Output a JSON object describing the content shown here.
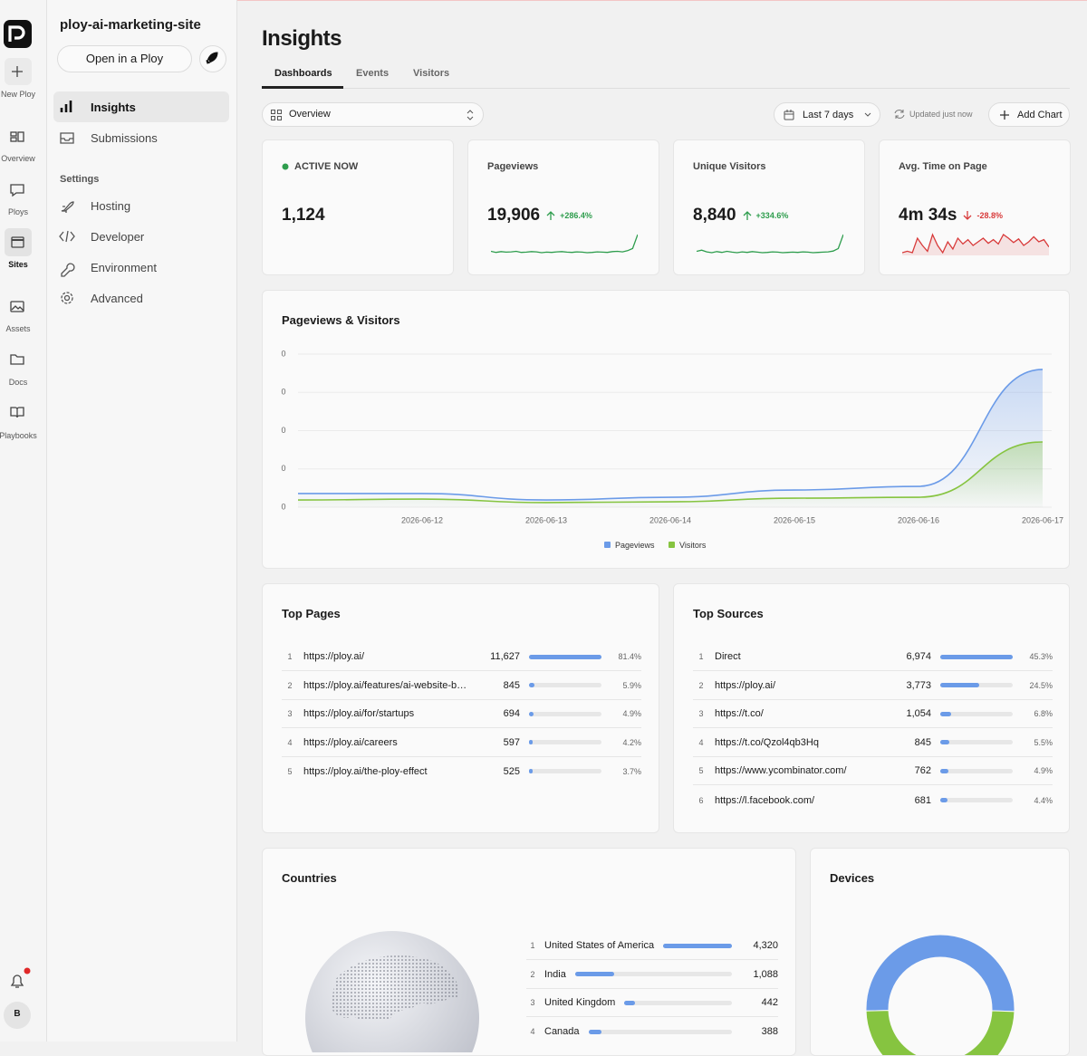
{
  "rail": {
    "items": [
      "New Ploy",
      "Overview",
      "Ploys",
      "Sites",
      "Assets",
      "Docs",
      "Playbooks"
    ],
    "avatar": "B"
  },
  "sidebar": {
    "site": "ploy-ai-marketing-site",
    "open_button": "Open in a Ploy",
    "nav": [
      "Insights",
      "Submissions"
    ],
    "settings_title": "Settings",
    "settings": [
      "Hosting",
      "Developer",
      "Environment",
      "Advanced"
    ]
  },
  "header": {
    "title": "Insights",
    "tabs": [
      "Dashboards",
      "Events",
      "Visitors"
    ]
  },
  "toolbar": {
    "view": "Overview",
    "range": "Last 7 days",
    "status": "Updated just now",
    "add": "Add Chart"
  },
  "stats": [
    {
      "label": "ACTIVE NOW",
      "value": "1,124",
      "dot_color": "#2e9d4d"
    },
    {
      "label": "Pageviews",
      "value": "19,906",
      "change": "+286.4%",
      "arrow": "up",
      "color": "#2e9d4d",
      "trend": [
        3,
        2.6,
        2.9,
        2.7,
        2.8,
        3,
        2.6,
        2.7,
        2.9,
        2.8,
        2.5,
        2.7,
        2.6,
        2.8,
        2.9,
        2.7,
        2.6,
        2.8,
        2.7,
        2.5,
        2.6,
        2.8,
        2.7,
        2.6,
        2.9,
        3,
        2.8,
        3.2,
        4,
        9
      ]
    },
    {
      "label": "Unique Visitors",
      "value": "8,840",
      "change": "+334.6%",
      "arrow": "up",
      "color": "#2e9d4d",
      "trend": [
        3,
        3.4,
        2.8,
        2.5,
        2.9,
        2.6,
        3,
        2.7,
        2.5,
        2.8,
        2.6,
        2.9,
        2.7,
        2.5,
        2.6,
        2.8,
        2.7,
        2.5,
        2.6,
        2.7,
        2.6,
        2.8,
        2.7,
        2.5,
        2.6,
        2.7,
        2.8,
        3.1,
        4,
        9
      ]
    },
    {
      "label": "Avg. Time on Page",
      "value": "4m 34s",
      "change": "-28.8%",
      "arrow": "down",
      "color": "#d83a3a",
      "trend": [
        5,
        5.2,
        5,
        7,
        6,
        5.2,
        7.5,
        6,
        5,
        6.5,
        5.5,
        7,
        6.2,
        6.8,
        6,
        6.5,
        7,
        6.3,
        6.8,
        6.2,
        7.5,
        7,
        6.4,
        6.9,
        6,
        6.5,
        7.2,
        6.5,
        6.8,
        5.8
      ]
    }
  ],
  "chart_data": [
    {
      "type": "line",
      "title": "Pageviews & Visitors",
      "categories": [
        null,
        "2026-06-12",
        "2026-06-13",
        "2026-06-14",
        "2026-06-15",
        "2026-06-16",
        "2026-06-17"
      ],
      "series": [
        {
          "name": "Pageviews",
          "color": "#6b9be8",
          "values": [
            890,
            890,
            470,
            650,
            1120,
            1360,
            9000
          ]
        },
        {
          "name": "Visitors",
          "color": "#86c440",
          "values": [
            470,
            530,
            300,
            350,
            590,
            650,
            4260
          ]
        }
      ],
      "ylim": [
        0,
        10000
      ],
      "yticks": [
        0,
        {
          "value": 2500,
          "label": "0"
        },
        {
          "value": 5000,
          "label": "0"
        },
        {
          "value": 7500,
          "label": "0"
        },
        {
          "value": 10000,
          "label": "0"
        }
      ],
      "grid": true
    },
    {
      "type": "pie",
      "title": "Devices",
      "values": [
        51,
        49
      ],
      "colors": [
        "#6b9be8",
        "#86c440"
      ]
    }
  ],
  "top_pages": {
    "title": "Top Pages",
    "rows": [
      {
        "rank": 1,
        "label": "https://ploy.ai/",
        "value": 11627,
        "value_label": "11,627",
        "share": 81.4,
        "share_label": "81.4%"
      },
      {
        "rank": 2,
        "label": "https://ploy.ai/features/ai-website-b…",
        "value": 845,
        "value_label": "845",
        "share": 5.9,
        "share_label": "5.9%"
      },
      {
        "rank": 3,
        "label": "https://ploy.ai/for/startups",
        "value": 694,
        "value_label": "694",
        "share": 4.9,
        "share_label": "4.9%"
      },
      {
        "rank": 4,
        "label": "https://ploy.ai/careers",
        "value": 597,
        "value_label": "597",
        "share": 4.2,
        "share_label": "4.2%"
      },
      {
        "rank": 5,
        "label": "https://ploy.ai/the-ploy-effect",
        "value": 525,
        "value_label": "525",
        "share": 3.7,
        "share_label": "3.7%"
      }
    ]
  },
  "top_sources": {
    "title": "Top Sources",
    "rows": [
      {
        "rank": 1,
        "label": "Direct",
        "value": 6974,
        "value_label": "6,974",
        "share": 45.3,
        "share_label": "45.3%"
      },
      {
        "rank": 2,
        "label": "https://ploy.ai/",
        "value": 3773,
        "value_label": "3,773",
        "share": 24.5,
        "share_label": "24.5%"
      },
      {
        "rank": 3,
        "label": "https://t.co/",
        "value": 1054,
        "value_label": "1,054",
        "share": 6.8,
        "share_label": "6.8%"
      },
      {
        "rank": 4,
        "label": "https://t.co/Qzol4qb3Hq",
        "value": 845,
        "value_label": "845",
        "share": 5.5,
        "share_label": "5.5%"
      },
      {
        "rank": 5,
        "label": "https://www.ycombinator.com/",
        "value": 762,
        "value_label": "762",
        "share": 4.9,
        "share_label": "4.9%"
      },
      {
        "rank": 6,
        "label": "https://l.facebook.com/",
        "value": 681,
        "value_label": "681",
        "share": 4.4,
        "share_label": "4.4%"
      }
    ]
  },
  "countries": {
    "title": "Countries",
    "rows": [
      {
        "rank": 1,
        "label": "United States of America",
        "value": 4320,
        "value_label": "4,320"
      },
      {
        "rank": 2,
        "label": "India",
        "value": 1088,
        "value_label": "1,088"
      },
      {
        "rank": 3,
        "label": "United Kingdom",
        "value": 442
      },
      {
        "rank": 4,
        "label": "Canada",
        "value": 388
      }
    ]
  }
}
